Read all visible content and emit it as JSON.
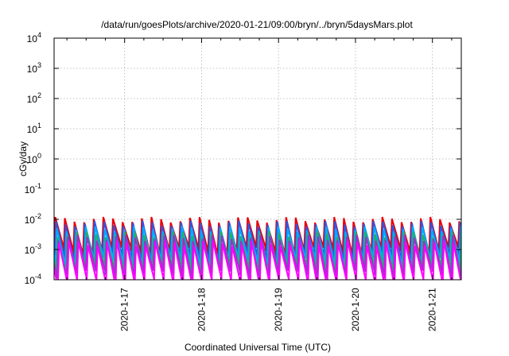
{
  "chart_data": {
    "type": "line",
    "title": "/data/run/goesPlots/archive/2020-01-21/09:00/bryn/../bryn/5daysMars.plot",
    "xlabel": "Coordinated Universal Time (UTC)",
    "ylabel": "cGy/day",
    "y_scale": "log",
    "ylim": [
      0.0001,
      10000
    ],
    "y_ticks": [
      {
        "value": 0.0001,
        "base": "10",
        "exp": "-4"
      },
      {
        "value": 0.001,
        "base": "10",
        "exp": "-3"
      },
      {
        "value": 0.01,
        "base": "10",
        "exp": "-2"
      },
      {
        "value": 0.1,
        "base": "10",
        "exp": "-1"
      },
      {
        "value": 1,
        "base": "10",
        "exp": "0"
      },
      {
        "value": 10,
        "base": "10",
        "exp": "1"
      },
      {
        "value": 100,
        "base": "10",
        "exp": "2"
      },
      {
        "value": 1000,
        "base": "10",
        "exp": "3"
      },
      {
        "value": 10000,
        "base": "10",
        "exp": "4"
      }
    ],
    "xlim": [
      "2020-01-16 02:00",
      "2020-01-21 09:00"
    ],
    "x_ticks": [
      "2020-1-17",
      "2020-1-18",
      "2020-1-19",
      "2020-1-20",
      "2020-1-21"
    ],
    "grid": true,
    "pattern": {
      "description": "repeating sawtooth: sharp rise then gradual decay",
      "period_hours": 3
    },
    "series": [
      {
        "color": "#e8000b",
        "peak": 0.012,
        "trough": 0.0012
      },
      {
        "color": "#3355dd",
        "peak": 0.009,
        "trough": 0.0007
      },
      {
        "color": "#00aaff",
        "peak": 0.006,
        "trough": 0.0005
      },
      {
        "color": "#20b070",
        "peak": 0.004,
        "trough": 0.0003
      },
      {
        "color": "#9933cc",
        "peak": 0.003,
        "trough": 0.0002
      },
      {
        "color": "#ff00ff",
        "peak": 0.002,
        "trough": 0.0001
      }
    ]
  }
}
